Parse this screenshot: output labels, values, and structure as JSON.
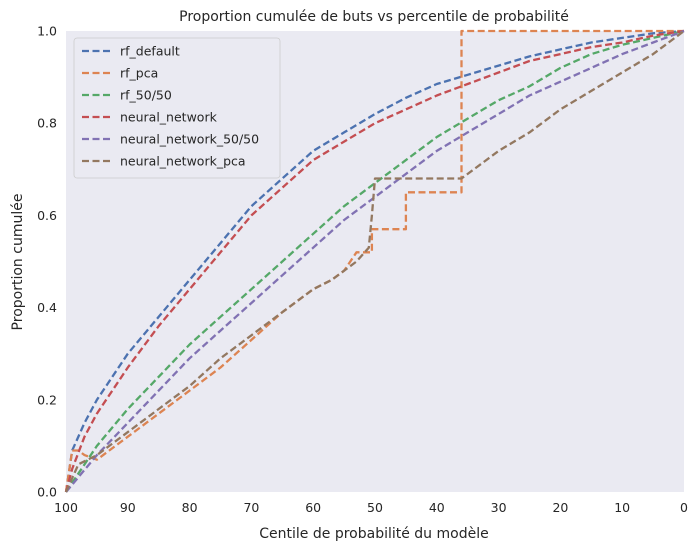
{
  "chart_data": {
    "type": "line",
    "title": "Proportion cumulée de buts vs percentile de probabilité",
    "xlabel": "Centile de probabilité du modèle",
    "ylabel": "Proportion cumulée",
    "xlim": [
      100,
      0
    ],
    "ylim": [
      0,
      1
    ],
    "x_ticks": [
      100,
      90,
      80,
      70,
      60,
      50,
      40,
      30,
      20,
      10,
      0
    ],
    "y_ticks": [
      0.0,
      0.2,
      0.4,
      0.6,
      0.8,
      1.0
    ],
    "grid": false,
    "legend_position": "top-left",
    "background": "#eaeaf2",
    "line_style": "dashed",
    "series": [
      {
        "name": "rf_default",
        "color": "#4c72b0",
        "x": [
          100,
          99,
          97,
          95,
          90,
          85,
          80,
          75,
          70,
          65,
          60,
          55,
          50,
          45,
          40,
          35,
          30,
          25,
          20,
          15,
          10,
          5,
          0
        ],
        "y": [
          0.0,
          0.09,
          0.15,
          0.2,
          0.3,
          0.38,
          0.46,
          0.54,
          0.62,
          0.68,
          0.74,
          0.78,
          0.82,
          0.855,
          0.885,
          0.905,
          0.925,
          0.945,
          0.96,
          0.975,
          0.985,
          0.995,
          1.0
        ]
      },
      {
        "name": "rf_pca",
        "color": "#dd8452",
        "x": [
          100,
          99,
          98,
          97,
          95,
          90,
          85,
          80,
          75,
          70,
          65,
          60,
          57,
          55,
          53,
          51,
          50.5,
          50.5,
          47.5,
          47.5,
          45,
          45,
          37,
          37,
          36,
          36,
          0
        ],
        "y": [
          0.0,
          0.09,
          0.09,
          0.08,
          0.07,
          0.12,
          0.17,
          0.22,
          0.27,
          0.33,
          0.39,
          0.44,
          0.46,
          0.48,
          0.52,
          0.52,
          0.52,
          0.57,
          0.57,
          0.57,
          0.57,
          0.65,
          0.65,
          0.65,
          0.65,
          1.0,
          1.0
        ]
      },
      {
        "name": "rf_50/50",
        "color": "#55a868",
        "x": [
          100,
          95,
          90,
          85,
          80,
          75,
          70,
          65,
          60,
          55,
          50,
          45,
          40,
          35,
          30,
          25,
          20,
          15,
          10,
          5,
          0
        ],
        "y": [
          0.0,
          0.1,
          0.18,
          0.25,
          0.32,
          0.38,
          0.44,
          0.5,
          0.56,
          0.62,
          0.67,
          0.72,
          0.77,
          0.81,
          0.85,
          0.88,
          0.92,
          0.95,
          0.97,
          0.985,
          1.0
        ]
      },
      {
        "name": "neural_network",
        "color": "#c44e52",
        "x": [
          100,
          99,
          97,
          95,
          90,
          85,
          80,
          75,
          70,
          65,
          60,
          55,
          50,
          45,
          40,
          35,
          30,
          25,
          20,
          15,
          10,
          5,
          0
        ],
        "y": [
          0.0,
          0.05,
          0.12,
          0.17,
          0.27,
          0.36,
          0.44,
          0.52,
          0.6,
          0.66,
          0.72,
          0.76,
          0.8,
          0.83,
          0.86,
          0.885,
          0.91,
          0.935,
          0.95,
          0.965,
          0.975,
          0.99,
          1.0
        ]
      },
      {
        "name": "neural_network_50/50",
        "color": "#8172b3",
        "x": [
          100,
          95,
          90,
          85,
          80,
          75,
          70,
          65,
          60,
          55,
          50,
          45,
          40,
          35,
          30,
          25,
          20,
          15,
          10,
          5,
          0
        ],
        "y": [
          0.0,
          0.08,
          0.15,
          0.22,
          0.29,
          0.35,
          0.41,
          0.47,
          0.53,
          0.59,
          0.64,
          0.69,
          0.74,
          0.78,
          0.82,
          0.86,
          0.89,
          0.92,
          0.95,
          0.975,
          1.0
        ]
      },
      {
        "name": "neural_network_pca",
        "color": "#937860",
        "x": [
          100,
          98,
          95,
          90,
          85,
          80,
          75,
          70,
          65,
          60,
          57,
          55,
          53,
          51,
          50.5,
          50,
          48,
          45,
          42,
          40,
          38,
          36,
          33,
          30,
          25,
          20,
          15,
          10,
          5,
          0
        ],
        "y": [
          0.0,
          0.06,
          0.08,
          0.13,
          0.18,
          0.23,
          0.29,
          0.34,
          0.39,
          0.44,
          0.46,
          0.48,
          0.5,
          0.53,
          0.6,
          0.68,
          0.68,
          0.68,
          0.68,
          0.68,
          0.68,
          0.68,
          0.71,
          0.74,
          0.78,
          0.83,
          0.87,
          0.91,
          0.95,
          1.0
        ]
      }
    ]
  }
}
